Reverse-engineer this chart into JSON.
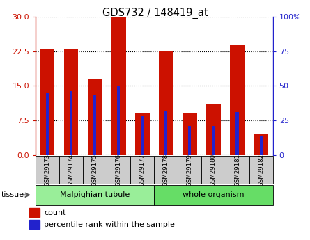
{
  "title": "GDS732 / 148419_at",
  "categories": [
    "GSM29173",
    "GSM29174",
    "GSM29175",
    "GSM29176",
    "GSM29177",
    "GSM29178",
    "GSM29179",
    "GSM29180",
    "GSM29181",
    "GSM29182"
  ],
  "count_values": [
    23,
    23,
    16.5,
    30,
    9,
    22.5,
    9,
    11,
    24,
    4.5
  ],
  "percentile_values": [
    45,
    46,
    43,
    50,
    28,
    32,
    21,
    21,
    31,
    14
  ],
  "left_ylim": [
    0,
    30
  ],
  "right_ylim": [
    0,
    100
  ],
  "left_yticks": [
    0,
    7.5,
    15,
    22.5,
    30
  ],
  "right_yticks": [
    0,
    25,
    50,
    75,
    100
  ],
  "bar_color": "#cc1100",
  "dot_color": "#2222cc",
  "tissue_groups": [
    {
      "label": "Malpighian tubule",
      "start": 0,
      "end": 4,
      "color": "#99ee99"
    },
    {
      "label": "whole organism",
      "start": 5,
      "end": 9,
      "color": "#66dd66"
    }
  ],
  "legend_count_label": "count",
  "legend_pct_label": "percentile rank within the sample",
  "tissue_label": "tissue",
  "bar_width": 0.6,
  "blue_bar_width": 0.12
}
